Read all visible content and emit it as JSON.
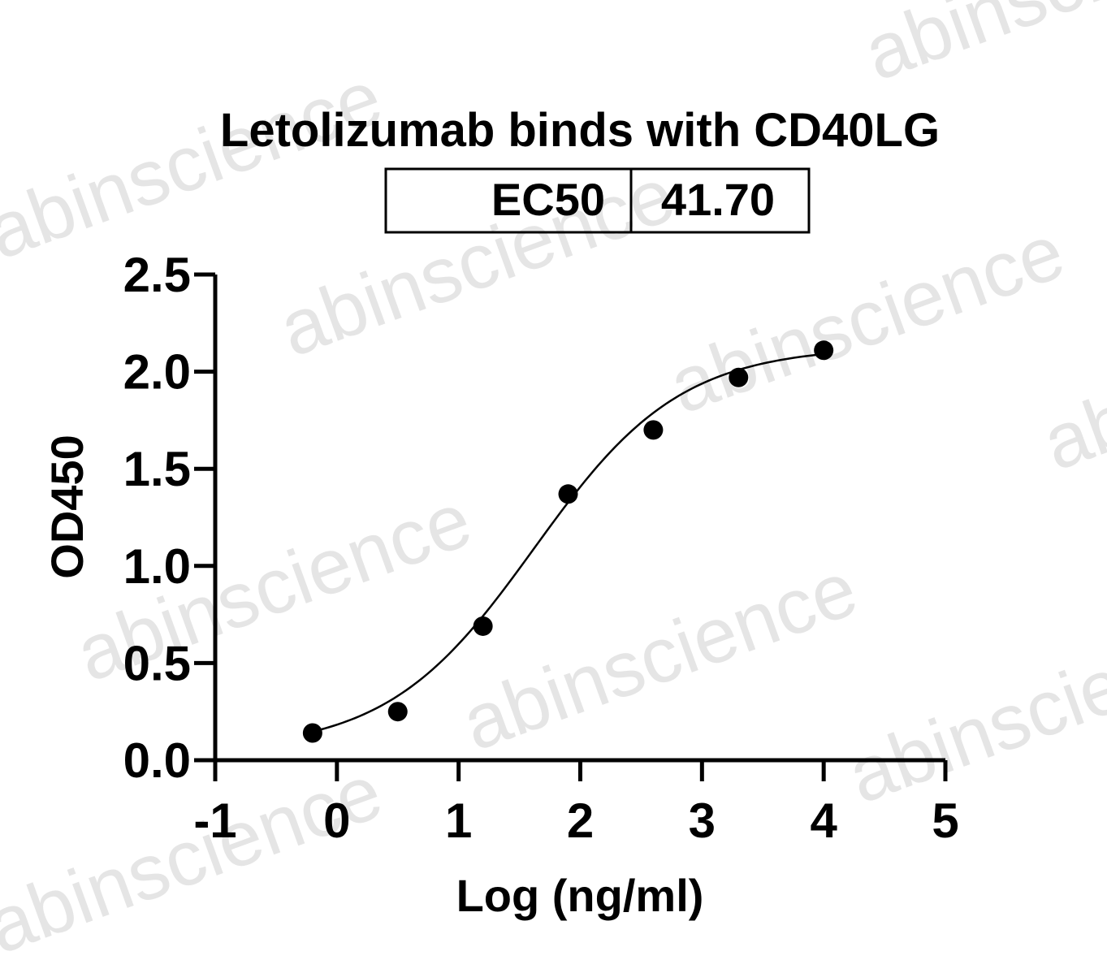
{
  "watermark": "abinscience",
  "chart_data": {
    "type": "scatter",
    "title": "Letolizumab binds with CD40LG",
    "xlabel": "Log (ng/ml)",
    "ylabel": "OD450",
    "xlim": [
      -1,
      5
    ],
    "ylim": [
      0,
      2.5
    ],
    "x_ticks": [
      "-1",
      "0",
      "1",
      "2",
      "3",
      "4",
      "5"
    ],
    "y_ticks": [
      "0.0",
      "0.5",
      "1.0",
      "1.5",
      "2.0",
      "2.5"
    ],
    "grid": false,
    "legend": "none",
    "ec50_table": {
      "label": "EC50",
      "value": "41.70"
    },
    "series": [
      {
        "x": [
          -0.2,
          0.5,
          1.2,
          1.9,
          2.6,
          3.3,
          4.0
        ],
        "y": [
          0.14,
          0.25,
          0.69,
          1.37,
          1.7,
          1.97,
          2.11
        ],
        "marker": "circle",
        "color": "#000000"
      }
    ],
    "fit_curve": {
      "model": "4PL",
      "bottom": 0.05,
      "top": 2.13,
      "log_ec50": 1.62,
      "hill_slope": 0.72,
      "x_range": [
        -0.2,
        4.0
      ],
      "color": "#000000"
    }
  }
}
